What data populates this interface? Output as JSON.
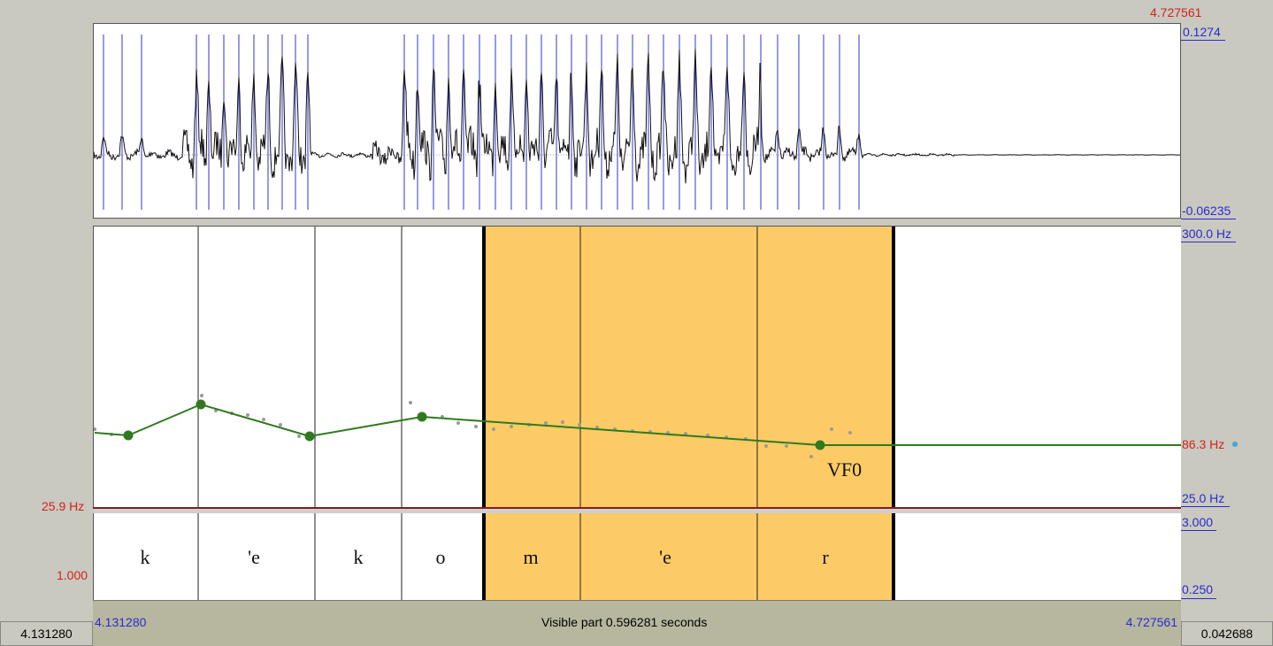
{
  "waveform": {
    "time_end_label": "4.727561",
    "amplitude_max": "0.1274",
    "amplitude_min": "-0.06235"
  },
  "pitch": {
    "top_label": "300.0 Hz",
    "current_value": "86.3 Hz",
    "bottom_label": "25.0 Hz",
    "cursor_label": "25.9 Hz",
    "tier_name": "VF0"
  },
  "tier": {
    "top_label": "3.000",
    "bottom_label": "0.250",
    "left_value": "1.000",
    "segments": [
      "k",
      "'e",
      "k",
      "o",
      "m",
      "'e",
      "r"
    ]
  },
  "bottom": {
    "start_time": "4.131280",
    "end_time": "4.727561",
    "visible_part": "Visible part 0.596281 seconds",
    "left_box": "4.131280",
    "right_box": "0.042688"
  },
  "colors": {
    "selection": "#fdcb66",
    "pitch_line": "#2f7a1f",
    "pulse": "#3333cc",
    "axis_red": "#d42020",
    "axis_blue": "#2a2ad4"
  }
}
